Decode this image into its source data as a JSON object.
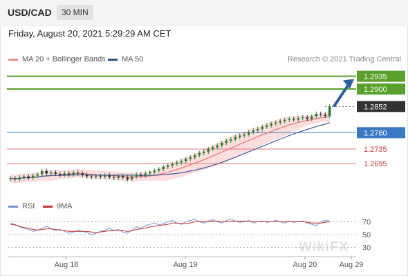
{
  "header": {
    "symbol": "USD/CAD",
    "timeframe": "30 MIN"
  },
  "datetime": "Friday, August 20, 2021 5:29:29 AM CET",
  "legend": {
    "bollinger": "MA 20 + Bollinger Bands",
    "ma50": "MA 50"
  },
  "credit": "Research © 2021 Trading Central",
  "rsi_legend": {
    "rsi": "RSI",
    "ma": "9MA"
  },
  "watermark": "WikiFX",
  "colors": {
    "up": "#2e7d32",
    "down": "#333333",
    "bands": "#f4b6b6",
    "ma20": "#e57373",
    "ma50": "#3f5b9a",
    "resistance": "#5aa02c",
    "support_line": "#e57373",
    "pivot": "#3a78c3",
    "current_tag": "#333333",
    "arrow": "#2f5f9a"
  },
  "chart_data": {
    "type": "candlestick",
    "timeframe": "30 MIN",
    "x_ticks": [
      "Aug 18",
      "Aug 19",
      "Aug 20",
      "Aug 29"
    ],
    "ylim": [
      1.261,
      1.2955
    ],
    "levels": [
      {
        "value": 1.2935,
        "label": "1.2935",
        "kind": "resistance"
      },
      {
        "value": 1.29,
        "label": "1.2900",
        "kind": "resistance"
      },
      {
        "value": 1.2852,
        "label": "1.2852",
        "kind": "current"
      },
      {
        "value": 1.278,
        "label": "1.2780",
        "kind": "pivot"
      },
      {
        "value": 1.2735,
        "label": "1.2735",
        "kind": "support"
      },
      {
        "value": 1.2695,
        "label": "1.2695",
        "kind": "support"
      }
    ],
    "price_path": [
      1.2655,
      1.2652,
      1.2657,
      1.266,
      1.2656,
      1.2662,
      1.2666,
      1.2675,
      1.2668,
      1.2671,
      1.2667,
      1.2664,
      1.2668,
      1.2665,
      1.267,
      1.2668,
      1.2664,
      1.266,
      1.2658,
      1.2661,
      1.2659,
      1.2663,
      1.2658,
      1.2656,
      1.2661,
      1.2657,
      1.2652,
      1.266,
      1.2665,
      1.2662,
      1.2668,
      1.2672,
      1.2676,
      1.268,
      1.2686,
      1.269,
      1.2694,
      1.2698,
      1.2702,
      1.2708,
      1.2712,
      1.2718,
      1.2724,
      1.2728,
      1.2735,
      1.274,
      1.2745,
      1.2752,
      1.2758,
      1.2762,
      1.2768,
      1.2772,
      1.2775,
      1.2782,
      1.2786,
      1.279,
      1.2796,
      1.28,
      1.2805,
      1.2808,
      1.2812,
      1.2815,
      1.2818,
      1.2816,
      1.282,
      1.2822,
      1.2818,
      1.2825,
      1.2832,
      1.283,
      1.2826,
      1.2852
    ],
    "rsi": {
      "levels": [
        70,
        50,
        30
      ],
      "values": [
        68,
        66,
        62,
        60,
        58,
        55,
        57,
        60,
        63,
        59,
        56,
        58,
        55,
        52,
        54,
        57,
        55,
        53,
        50,
        52,
        55,
        57,
        60,
        56,
        58,
        54,
        52,
        57,
        62,
        60,
        64,
        66,
        68,
        65,
        67,
        70,
        72,
        68,
        66,
        70,
        72,
        74,
        70,
        68,
        71,
        73,
        70,
        68,
        72,
        74,
        71,
        69,
        70,
        72,
        68,
        70,
        71,
        69,
        70,
        72,
        70,
        68,
        71,
        69,
        70,
        71,
        68,
        66,
        64,
        70,
        72,
        71
      ],
      "ma": [
        66,
        65,
        63,
        61,
        60,
        58,
        57,
        58,
        59,
        59,
        58,
        57,
        56,
        55,
        55,
        55,
        55,
        55,
        54,
        53,
        54,
        55,
        56,
        56,
        57,
        56,
        55,
        56,
        58,
        59,
        60,
        62,
        63,
        64,
        65,
        66,
        68,
        68,
        67,
        67,
        68,
        70,
        70,
        70,
        70,
        71,
        71,
        70,
        70,
        71,
        71,
        71,
        71,
        71,
        70,
        70,
        70,
        70,
        70,
        71,
        70,
        70,
        70,
        70,
        70,
        70,
        69,
        68,
        68,
        68,
        69,
        70
      ]
    }
  }
}
